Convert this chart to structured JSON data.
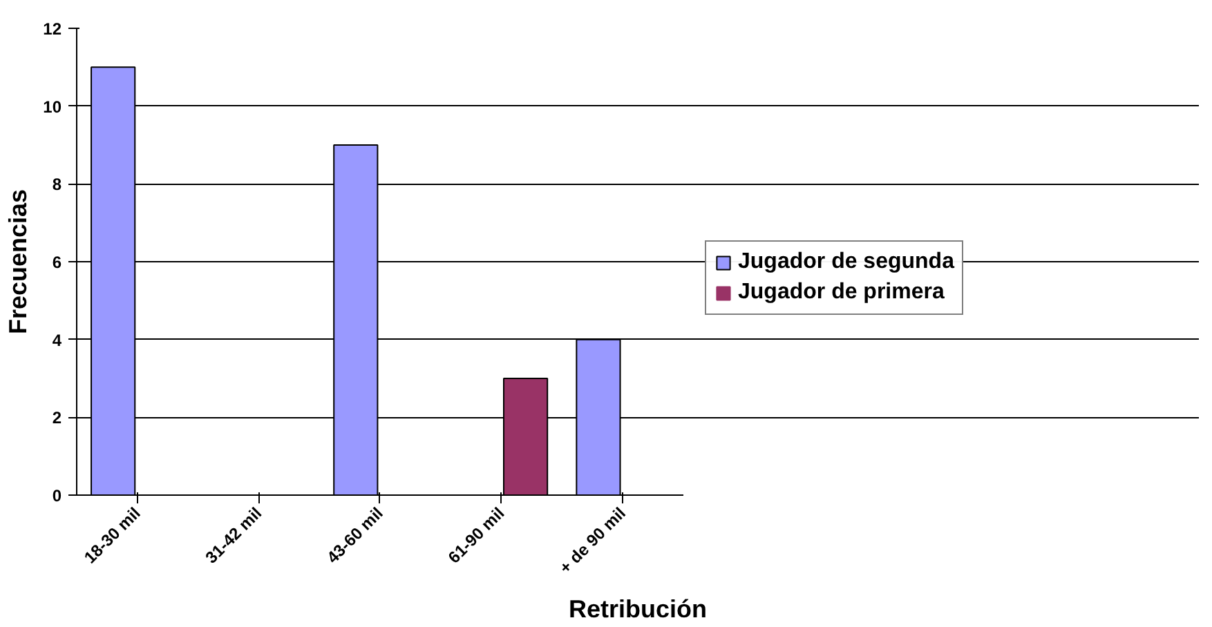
{
  "chart_data": {
    "type": "bar",
    "xlabel": "Retribución",
    "ylabel": "Frecuencias",
    "categories": [
      "18-30 mil",
      "31-42 mil",
      "43-60 mil",
      "61-90 mil",
      "+ de 90 mil"
    ],
    "series": [
      {
        "name": "Jugador de segunda",
        "color": "#9999ff",
        "values": [
          11,
          0,
          9,
          0,
          4
        ]
      },
      {
        "name": "Jugador de primera",
        "color": "#993366",
        "values": [
          0,
          0,
          0,
          3,
          0
        ]
      }
    ],
    "ylim": [
      0,
      12
    ],
    "yticks": [
      0,
      2,
      4,
      6,
      8,
      10,
      12
    ],
    "grid": "y",
    "legend": "right"
  }
}
